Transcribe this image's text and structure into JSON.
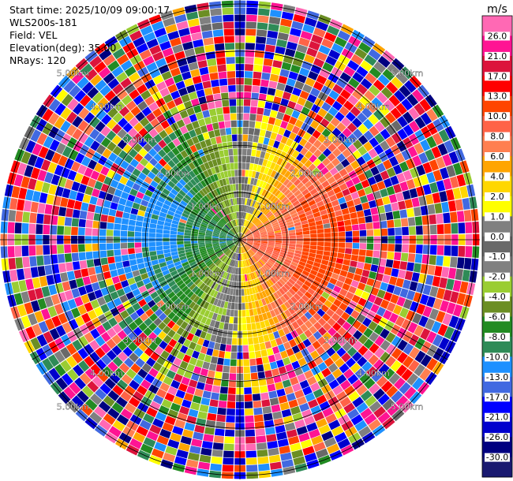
{
  "header": {
    "start_time": "Start time: 2025/10/09 09:00:17",
    "instrument": "WLS200s-181",
    "field": "Field: VEL",
    "elevation": "Elevation(deg): 35.00",
    "nrays": "NRays: 120"
  },
  "chart_data": {
    "type": "heatmap",
    "title": "",
    "field": "VEL",
    "units": "m/s",
    "n_rays": 120,
    "elevation_deg": 35.0,
    "range_ring_labels": [
      "1.00km",
      "2.00km",
      "3.00km",
      "4.00km",
      "5.00km"
    ],
    "range_rings_km": [
      1,
      2,
      3,
      4,
      5
    ],
    "colorbar": {
      "label": "m/s",
      "tick_labels": [
        "26.0",
        "21.0",
        "17.0",
        "13.0",
        "10.0",
        "8.0",
        "6.0",
        "4.0",
        "2.0",
        "1.0",
        "0.0",
        "-1.0",
        "-2.0",
        "-4.0",
        "-6.0",
        "-8.0",
        "-10.0",
        "-13.0",
        "-17.0",
        "-21.0",
        "-26.0",
        "-30.0"
      ],
      "colors": [
        "#ff69b4",
        "#ff1493",
        "#dc143c",
        "#ff0000",
        "#ff4500",
        "#ff6347",
        "#ff7f50",
        "#ffa500",
        "#ffd700",
        "#ffff00",
        "#808080",
        "#696969",
        "#808080",
        "#9acd32",
        "#6b8e23",
        "#228b22",
        "#2e8b57",
        "#1e90ff",
        "#4169e1",
        "#0000ff",
        "#0000cd",
        "#000080",
        "#191970"
      ]
    },
    "pattern": {
      "inner_east_velocity": "positive (yellow/orange)",
      "inner_west_velocity": "negative (green/blue)",
      "outer_ranges": "noisy / mixed colors"
    }
  }
}
